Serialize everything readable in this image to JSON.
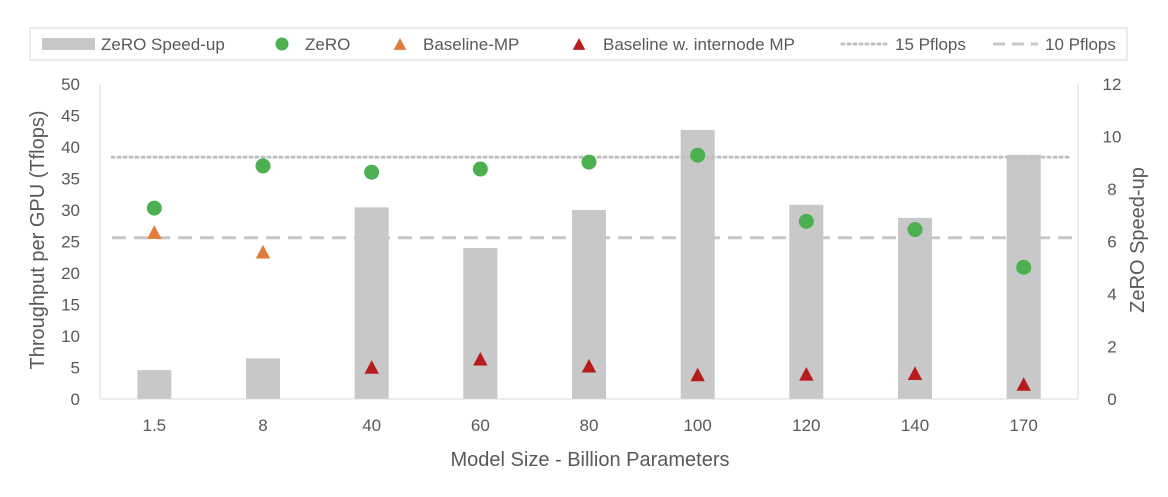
{
  "chart_data": {
    "type": "bar",
    "categories": [
      "1.5",
      "8",
      "40",
      "60",
      "80",
      "100",
      "120",
      "140",
      "170"
    ],
    "xlabel": "Model Size - Billion Parameters",
    "ylabel_left": "Throughput per GPU (Tflops)",
    "ylabel_right": "ZeRO Speed-up",
    "ylim_left": [
      0,
      50
    ],
    "yticks_left": [
      0,
      5,
      10,
      15,
      20,
      25,
      30,
      35,
      40,
      45,
      50
    ],
    "ylim_right": [
      0,
      12
    ],
    "yticks_right": [
      0,
      2,
      4,
      6,
      8,
      10,
      12
    ],
    "series": [
      {
        "name": "ZeRO Speed-up",
        "kind": "bar",
        "axis": "right",
        "color": "#c8c8c8",
        "values": [
          1.1,
          1.55,
          7.3,
          5.75,
          7.2,
          10.25,
          7.4,
          6.9,
          9.3
        ]
      },
      {
        "name": "ZeRO",
        "kind": "circle",
        "axis": "left",
        "color": "#4caf50",
        "values": [
          30.3,
          37.0,
          36.0,
          36.5,
          37.6,
          38.7,
          28.2,
          26.9,
          20.9
        ]
      },
      {
        "name": "Baseline-MP",
        "kind": "triangle",
        "axis": "left",
        "color": "#e07b39",
        "values": [
          26.3,
          23.2,
          null,
          null,
          null,
          null,
          null,
          null,
          null
        ]
      },
      {
        "name": "Baseline w. internode MP",
        "kind": "triangle",
        "axis": "left",
        "color": "#b71c1c",
        "values": [
          null,
          null,
          4.9,
          6.2,
          5.1,
          3.7,
          3.8,
          3.9,
          2.2
        ]
      }
    ],
    "reference_lines": [
      {
        "name": "15 Pflops",
        "style": "dotted",
        "value": 38.4,
        "axis": "left",
        "color": "#c0c0c0"
      },
      {
        "name": "10 Pflops",
        "style": "dashed",
        "value": 25.6,
        "axis": "left",
        "color": "#c8c8c8"
      }
    ],
    "legend_position": "top",
    "grid": false
  }
}
